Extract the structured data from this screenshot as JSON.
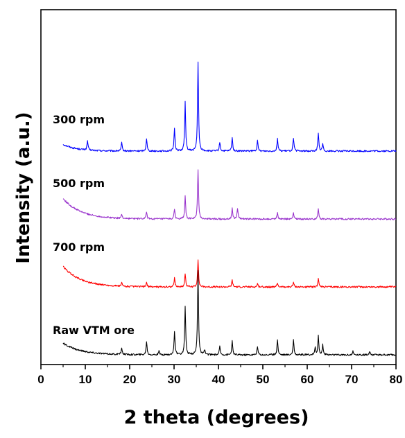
{
  "chart_data": {
    "type": "line",
    "title": "",
    "xlabel": "2 theta (degrees)",
    "ylabel": "Intensity (a.u.)",
    "xlim": [
      0,
      80
    ],
    "xticks": [
      0,
      10,
      20,
      30,
      40,
      50,
      60,
      70,
      80
    ],
    "yticks_shown": false,
    "grid": false,
    "series": [
      {
        "name": "300 rpm",
        "color": "#0000ff",
        "baseline": 3.0,
        "start_hump": {
          "x0": 5,
          "height": 0.1,
          "decay": 3
        },
        "peaks": [
          [
            10.5,
            0.14
          ],
          [
            18.2,
            0.12
          ],
          [
            23.8,
            0.19
          ],
          [
            30.1,
            0.34
          ],
          [
            32.5,
            0.72
          ],
          [
            35.4,
            1.3
          ],
          [
            40.3,
            0.13
          ],
          [
            43.1,
            0.2
          ],
          [
            48.8,
            0.15
          ],
          [
            53.3,
            0.19
          ],
          [
            56.9,
            0.2
          ],
          [
            62.5,
            0.26
          ],
          [
            63.5,
            0.11
          ]
        ]
      },
      {
        "name": "500 rpm",
        "color": "#9933cc",
        "baseline": 2.0,
        "start_hump": {
          "x0": 5,
          "height": 0.3,
          "decay": 4
        },
        "peaks": [
          [
            18.2,
            0.06
          ],
          [
            23.8,
            0.1
          ],
          [
            30.1,
            0.14
          ],
          [
            32.5,
            0.33
          ],
          [
            35.4,
            0.72
          ],
          [
            43.1,
            0.16
          ],
          [
            44.3,
            0.16
          ],
          [
            53.3,
            0.1
          ],
          [
            56.9,
            0.1
          ],
          [
            62.5,
            0.14
          ]
        ]
      },
      {
        "name": "700 rpm",
        "color": "#ff0000",
        "baseline": 1.0,
        "start_hump": {
          "x0": 5,
          "height": 0.3,
          "decay": 4
        },
        "peaks": [
          [
            18.2,
            0.05
          ],
          [
            23.8,
            0.06
          ],
          [
            30.1,
            0.13
          ],
          [
            32.5,
            0.2
          ],
          [
            35.4,
            0.4
          ],
          [
            43.1,
            0.1
          ],
          [
            48.8,
            0.05
          ],
          [
            53.3,
            0.06
          ],
          [
            56.9,
            0.07
          ],
          [
            62.5,
            0.13
          ]
        ]
      },
      {
        "name": "Raw VTM ore",
        "color": "#000000",
        "baseline": 0.0,
        "start_hump": {
          "x0": 5,
          "height": 0.17,
          "decay": 4
        },
        "peaks": [
          [
            18.2,
            0.1
          ],
          [
            23.8,
            0.2
          ],
          [
            26.6,
            0.05
          ],
          [
            30.1,
            0.35
          ],
          [
            32.5,
            0.72
          ],
          [
            35.4,
            1.25
          ],
          [
            36.9,
            0.07
          ],
          [
            40.3,
            0.12
          ],
          [
            43.1,
            0.2
          ],
          [
            48.8,
            0.12
          ],
          [
            53.3,
            0.23
          ],
          [
            56.9,
            0.22
          ],
          [
            61.8,
            0.1
          ],
          [
            62.5,
            0.28
          ],
          [
            63.5,
            0.15
          ],
          [
            70.3,
            0.05
          ],
          [
            74.1,
            0.05
          ]
        ]
      }
    ]
  }
}
